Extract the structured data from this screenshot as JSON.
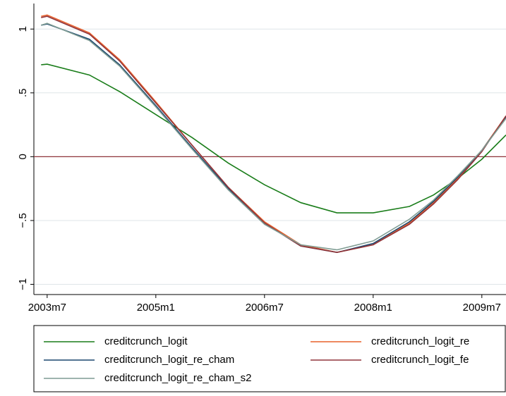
{
  "chart_data": {
    "type": "line",
    "x": [
      521,
      522,
      529,
      534,
      540,
      546,
      552,
      558,
      564,
      570,
      576,
      582,
      586,
      590,
      594,
      598
    ],
    "xlim": [
      519.8,
      598
    ],
    "xticks": [
      {
        "value": 522,
        "label": "2003m7"
      },
      {
        "value": 540,
        "label": "2005m1"
      },
      {
        "value": 558,
        "label": "2006m7"
      },
      {
        "value": 576,
        "label": "2008m1"
      },
      {
        "value": 594,
        "label": "2009m7"
      }
    ],
    "ylim": [
      -1.08,
      1.2
    ],
    "yticks": [
      {
        "value": -1,
        "label": "−1"
      },
      {
        "value": -0.5,
        "label": "−.5"
      },
      0,
      {
        "value": 0.5,
        "label": ".5"
      },
      1
    ],
    "grid": true,
    "yline": {
      "value": 0,
      "color": "#90353b"
    },
    "legend": "bottom",
    "series": [
      {
        "name": "creditcrunch_logit",
        "color": "#1a7d1a",
        "values": [
          0.72,
          0.725,
          0.64,
          0.51,
          0.33,
          0.15,
          -0.05,
          -0.22,
          -0.36,
          -0.44,
          -0.44,
          -0.39,
          -0.3,
          -0.17,
          -0.02,
          0.17
        ]
      },
      {
        "name": "creditcrunch_logit_re",
        "color": "#e8612c",
        "values": [
          1.1,
          1.11,
          0.97,
          0.76,
          0.43,
          0.09,
          -0.24,
          -0.51,
          -0.69,
          -0.75,
          -0.69,
          -0.52,
          -0.36,
          -0.17,
          0.05,
          0.32
        ]
      },
      {
        "name": "creditcrunch_logit_re_cham",
        "color": "#1a476f",
        "values": [
          1.03,
          1.04,
          0.92,
          0.72,
          0.4,
          0.07,
          -0.25,
          -0.52,
          -0.7,
          -0.75,
          -0.68,
          -0.51,
          -0.35,
          -0.16,
          0.05,
          0.31
        ]
      },
      {
        "name": "creditcrunch_logit_fe",
        "color": "#90353b",
        "values": [
          1.09,
          1.1,
          0.96,
          0.75,
          0.42,
          0.09,
          -0.24,
          -0.52,
          -0.7,
          -0.75,
          -0.69,
          -0.53,
          -0.37,
          -0.18,
          0.04,
          0.32
        ]
      },
      {
        "name": "creditcrunch_logit_re_cham_s2",
        "color": "#7f9c93",
        "values": [
          1.03,
          1.045,
          0.91,
          0.71,
          0.39,
          0.06,
          -0.26,
          -0.53,
          -0.69,
          -0.73,
          -0.66,
          -0.49,
          -0.34,
          -0.15,
          0.05,
          0.3
        ]
      }
    ]
  }
}
